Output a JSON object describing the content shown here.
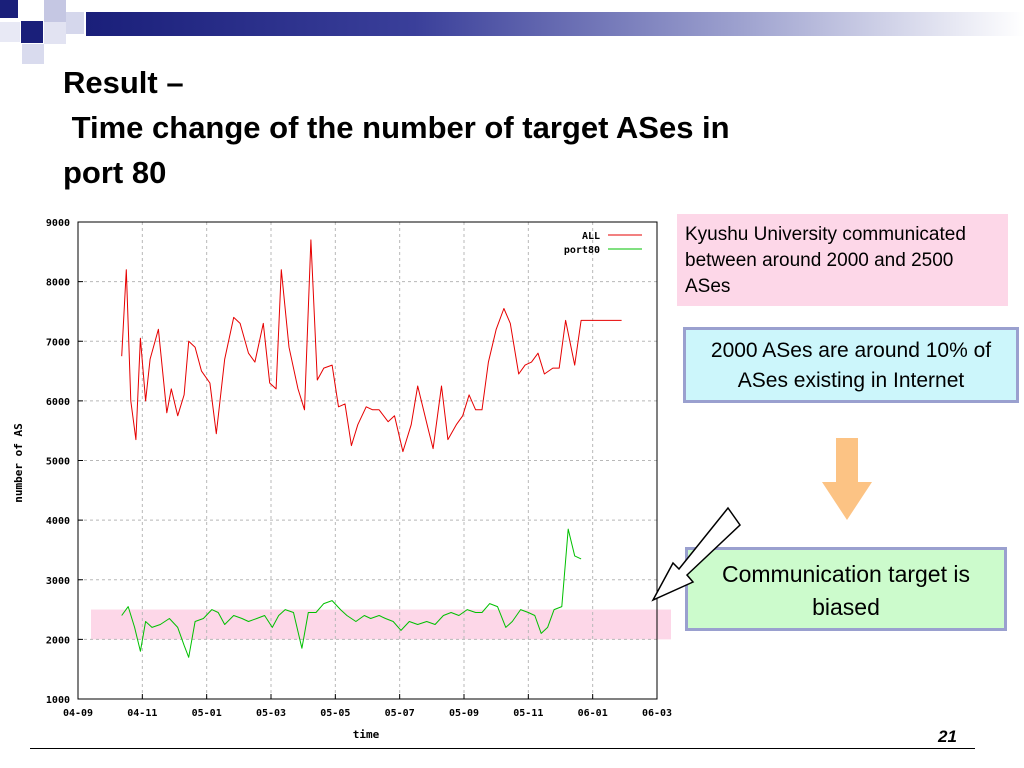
{
  "slide": {
    "title_lines": [
      "Result –",
      " Time change of the number of target ASes in",
      "port 80"
    ],
    "page_number": "21"
  },
  "callouts": {
    "kyushu": "Kyushu University communicated between around 2000 and 2500 ASes",
    "ratio": "2000 ASes are around 10% of ASes existing in Internet",
    "biased": "Communication target is biased"
  },
  "colors": {
    "all_series": "#e60000",
    "port80_series": "#00c000",
    "highlight_band": "#fdd7e8"
  },
  "chart_data": {
    "type": "line",
    "xlabel": "time",
    "ylabel": "number of AS",
    "ylim": [
      1000,
      9000
    ],
    "yticks": [
      "1000",
      "2000",
      "3000",
      "4000",
      "5000",
      "6000",
      "7000",
      "8000",
      "9000"
    ],
    "xticks": [
      "04-09",
      "04-11",
      "05-01",
      "05-03",
      "05-05",
      "05-07",
      "05-09",
      "05-11",
      "06-01",
      "06-03"
    ],
    "xlim": [
      0,
      9
    ],
    "grid": true,
    "legend_position": "top-right",
    "highlight_band": [
      2000,
      2500
    ],
    "series": [
      {
        "name": "ALL",
        "x": [
          0.68,
          0.75,
          0.82,
          0.9,
          0.97,
          1.05,
          1.12,
          1.25,
          1.38,
          1.45,
          1.55,
          1.65,
          1.72,
          1.82,
          1.92,
          2.05,
          2.15,
          2.28,
          2.42,
          2.52,
          2.65,
          2.75,
          2.88,
          2.98,
          3.08,
          3.16,
          3.28,
          3.42,
          3.52,
          3.62,
          3.72,
          3.82,
          3.95,
          4.05,
          4.15,
          4.25,
          4.35,
          4.48,
          4.58,
          4.68,
          4.82,
          4.92,
          5.05,
          5.18,
          5.28,
          5.45,
          5.52,
          5.65,
          5.75,
          5.88,
          5.98,
          6.08,
          6.18,
          6.28,
          6.38,
          6.5,
          6.62,
          6.72,
          6.85,
          6.95,
          7.05,
          7.15,
          7.25,
          7.38,
          7.48,
          7.58,
          7.72,
          7.82,
          7.92,
          8.05,
          8.15,
          8.25,
          8.35,
          8.45
        ],
        "values": [
          6750,
          8200,
          6000,
          5350,
          7050,
          6000,
          6700,
          7200,
          5800,
          6200,
          5750,
          6100,
          7000,
          6900,
          6500,
          6300,
          5450,
          6700,
          7400,
          7300,
          6800,
          6650,
          7300,
          6300,
          6200,
          8200,
          6900,
          6200,
          5850,
          8700,
          6350,
          6550,
          6600,
          5900,
          5950,
          5250,
          5600,
          5900,
          5850,
          5850,
          5650,
          5750,
          5150,
          5600,
          6250,
          5500,
          5200,
          6250,
          5350,
          5600,
          5750,
          6100,
          5850,
          5850,
          6650,
          7200,
          7550,
          7300,
          6450,
          6600,
          6650,
          6800,
          6450,
          6550,
          6550,
          7350,
          6600,
          7350,
          7350,
          7350,
          7350,
          7350,
          7350,
          7350
        ]
      },
      {
        "name": "port80",
        "x": [
          0.68,
          0.78,
          0.88,
          0.97,
          1.05,
          1.15,
          1.28,
          1.42,
          1.55,
          1.65,
          1.72,
          1.82,
          1.95,
          2.08,
          2.18,
          2.28,
          2.42,
          2.55,
          2.65,
          2.78,
          2.9,
          3.02,
          3.12,
          3.22,
          3.35,
          3.48,
          3.58,
          3.7,
          3.82,
          3.95,
          4.08,
          4.18,
          4.32,
          4.45,
          4.55,
          4.68,
          4.78,
          4.9,
          5.02,
          5.15,
          5.28,
          5.42,
          5.55,
          5.68,
          5.8,
          5.92,
          6.05,
          6.18,
          6.28,
          6.4,
          6.52,
          6.65,
          6.75,
          6.88,
          7.0,
          7.1,
          7.2,
          7.3,
          7.4,
          7.52,
          7.62,
          7.72,
          7.82
        ],
        "values": [
          2400,
          2550,
          2200,
          1800,
          2300,
          2200,
          2250,
          2350,
          2200,
          1900,
          1700,
          2300,
          2350,
          2500,
          2450,
          2250,
          2400,
          2350,
          2300,
          2350,
          2400,
          2200,
          2400,
          2500,
          2450,
          1850,
          2450,
          2450,
          2600,
          2650,
          2500,
          2400,
          2300,
          2400,
          2350,
          2400,
          2350,
          2300,
          2150,
          2300,
          2250,
          2300,
          2250,
          2400,
          2450,
          2400,
          2500,
          2450,
          2450,
          2600,
          2550,
          2200,
          2300,
          2500,
          2450,
          2400,
          2100,
          2200,
          2500,
          2550,
          3850,
          3400,
          3350
        ]
      }
    ]
  }
}
